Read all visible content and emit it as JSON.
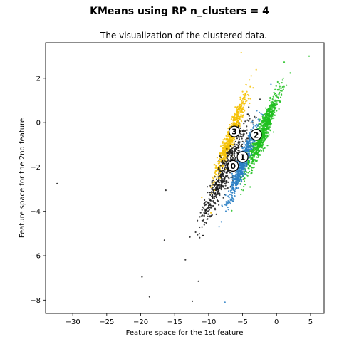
{
  "figure": {
    "suptitle": "KMeans using RP n_clusters = 4"
  },
  "chart_data": {
    "type": "scatter",
    "title": "The visualization of the clustered data.",
    "xlabel": "Feature space for the 1st feature",
    "ylabel": "Feature space for the 2nd feature",
    "xlim": [
      -34,
      7
    ],
    "ylim": [
      -8.6,
      3.6
    ],
    "xticks": [
      -30,
      -25,
      -20,
      -15,
      -10,
      -5,
      0,
      5
    ],
    "yticks": [
      -8,
      -6,
      -4,
      -2,
      0,
      2
    ],
    "grid": false,
    "clusters": [
      {
        "id": 0,
        "color": "#1a1a1a",
        "center_x": -7.7,
        "center_y": -2.3,
        "spread_x": 3.0,
        "spread_y": 1.2,
        "count": 520
      },
      {
        "id": 1,
        "color": "#2a7fc4",
        "center_x": -5.0,
        "center_y": -1.8,
        "spread_x": 1.8,
        "spread_y": 0.9,
        "count": 650
      },
      {
        "id": 2,
        "color": "#1fbf1f",
        "center_x": -2.0,
        "center_y": -0.4,
        "spread_x": 2.2,
        "spread_y": 1.0,
        "count": 850
      },
      {
        "id": 3,
        "color": "#f5c000",
        "center_x": -6.7,
        "center_y": -0.6,
        "spread_x": 2.0,
        "spread_y": 1.0,
        "count": 620
      }
    ],
    "outliers": [
      {
        "x": -32.3,
        "y": -2.75,
        "cluster": 0
      },
      {
        "x": -19.8,
        "y": -6.95,
        "cluster": 0
      },
      {
        "x": -18.7,
        "y": -7.85,
        "cluster": 0
      },
      {
        "x": -16.5,
        "y": -5.3,
        "cluster": 0
      },
      {
        "x": -16.3,
        "y": -3.05,
        "cluster": 0
      },
      {
        "x": -12.4,
        "y": -8.05,
        "cluster": 0
      },
      {
        "x": -7.6,
        "y": -8.1,
        "cluster": 1
      },
      {
        "x": -11.5,
        "y": -7.15,
        "cluster": 0
      },
      {
        "x": -5.2,
        "y": 3.15,
        "cluster": 3
      },
      {
        "x": 4.8,
        "y": 3.0,
        "cluster": 2
      }
    ],
    "centroids": [
      {
        "label": "0",
        "x": -6.4,
        "y": -1.95
      },
      {
        "label": "1",
        "x": -5.0,
        "y": -1.55
      },
      {
        "label": "2",
        "x": -3.0,
        "y": -0.55
      },
      {
        "label": "3",
        "x": -6.2,
        "y": -0.4
      }
    ]
  }
}
